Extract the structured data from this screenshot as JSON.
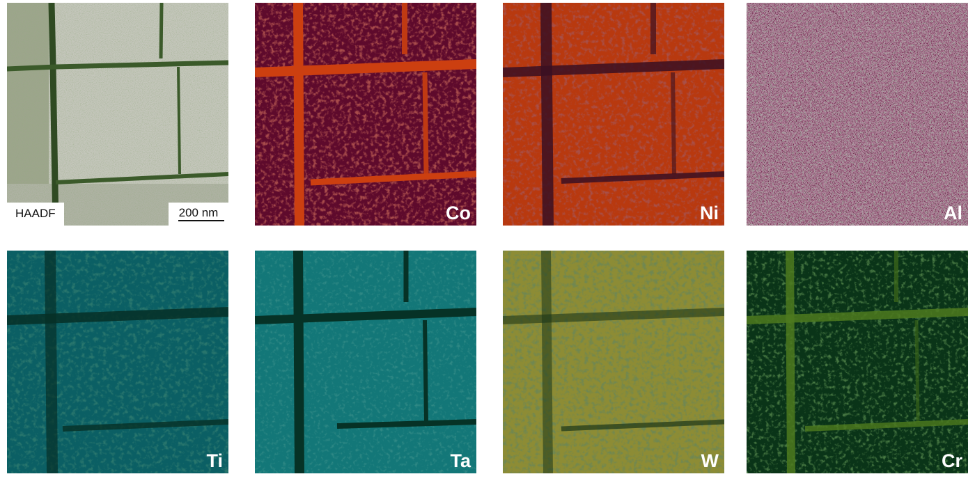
{
  "figure": {
    "panels": [
      {
        "id": "haadf",
        "label": "HAADF",
        "scale_bar": "200 nm",
        "base": "#b9bcae",
        "line": "#2f4a22",
        "noise": "#5f7a3c"
      },
      {
        "id": "co",
        "label": "Co",
        "base": "#5e0a2c",
        "line": "#cc3f10",
        "noise": "#9a2818"
      },
      {
        "id": "ni",
        "label": "Ni",
        "base": "#b8390f",
        "line": "#3a0f22",
        "noise": "#5c1a20"
      },
      {
        "id": "al",
        "label": "Al",
        "base": "#5c0c34",
        "line": "#2a1a22",
        "noise": "#2a3a22"
      },
      {
        "id": "ti",
        "label": "Ti",
        "base": "#0b5f64",
        "line": "#062f26",
        "noise": "#063a2e"
      },
      {
        "id": "ta",
        "label": "Ta",
        "base": "#137778",
        "line": "#063226",
        "noise": "#0c4a44"
      },
      {
        "id": "w",
        "label": "W",
        "base": "#8d8c35",
        "line": "#1c3618",
        "noise": "#3d5226"
      },
      {
        "id": "cr",
        "label": "Cr",
        "base": "#0a3418",
        "line": "#4d7a1e",
        "noise": "#1f4e16"
      }
    ]
  }
}
